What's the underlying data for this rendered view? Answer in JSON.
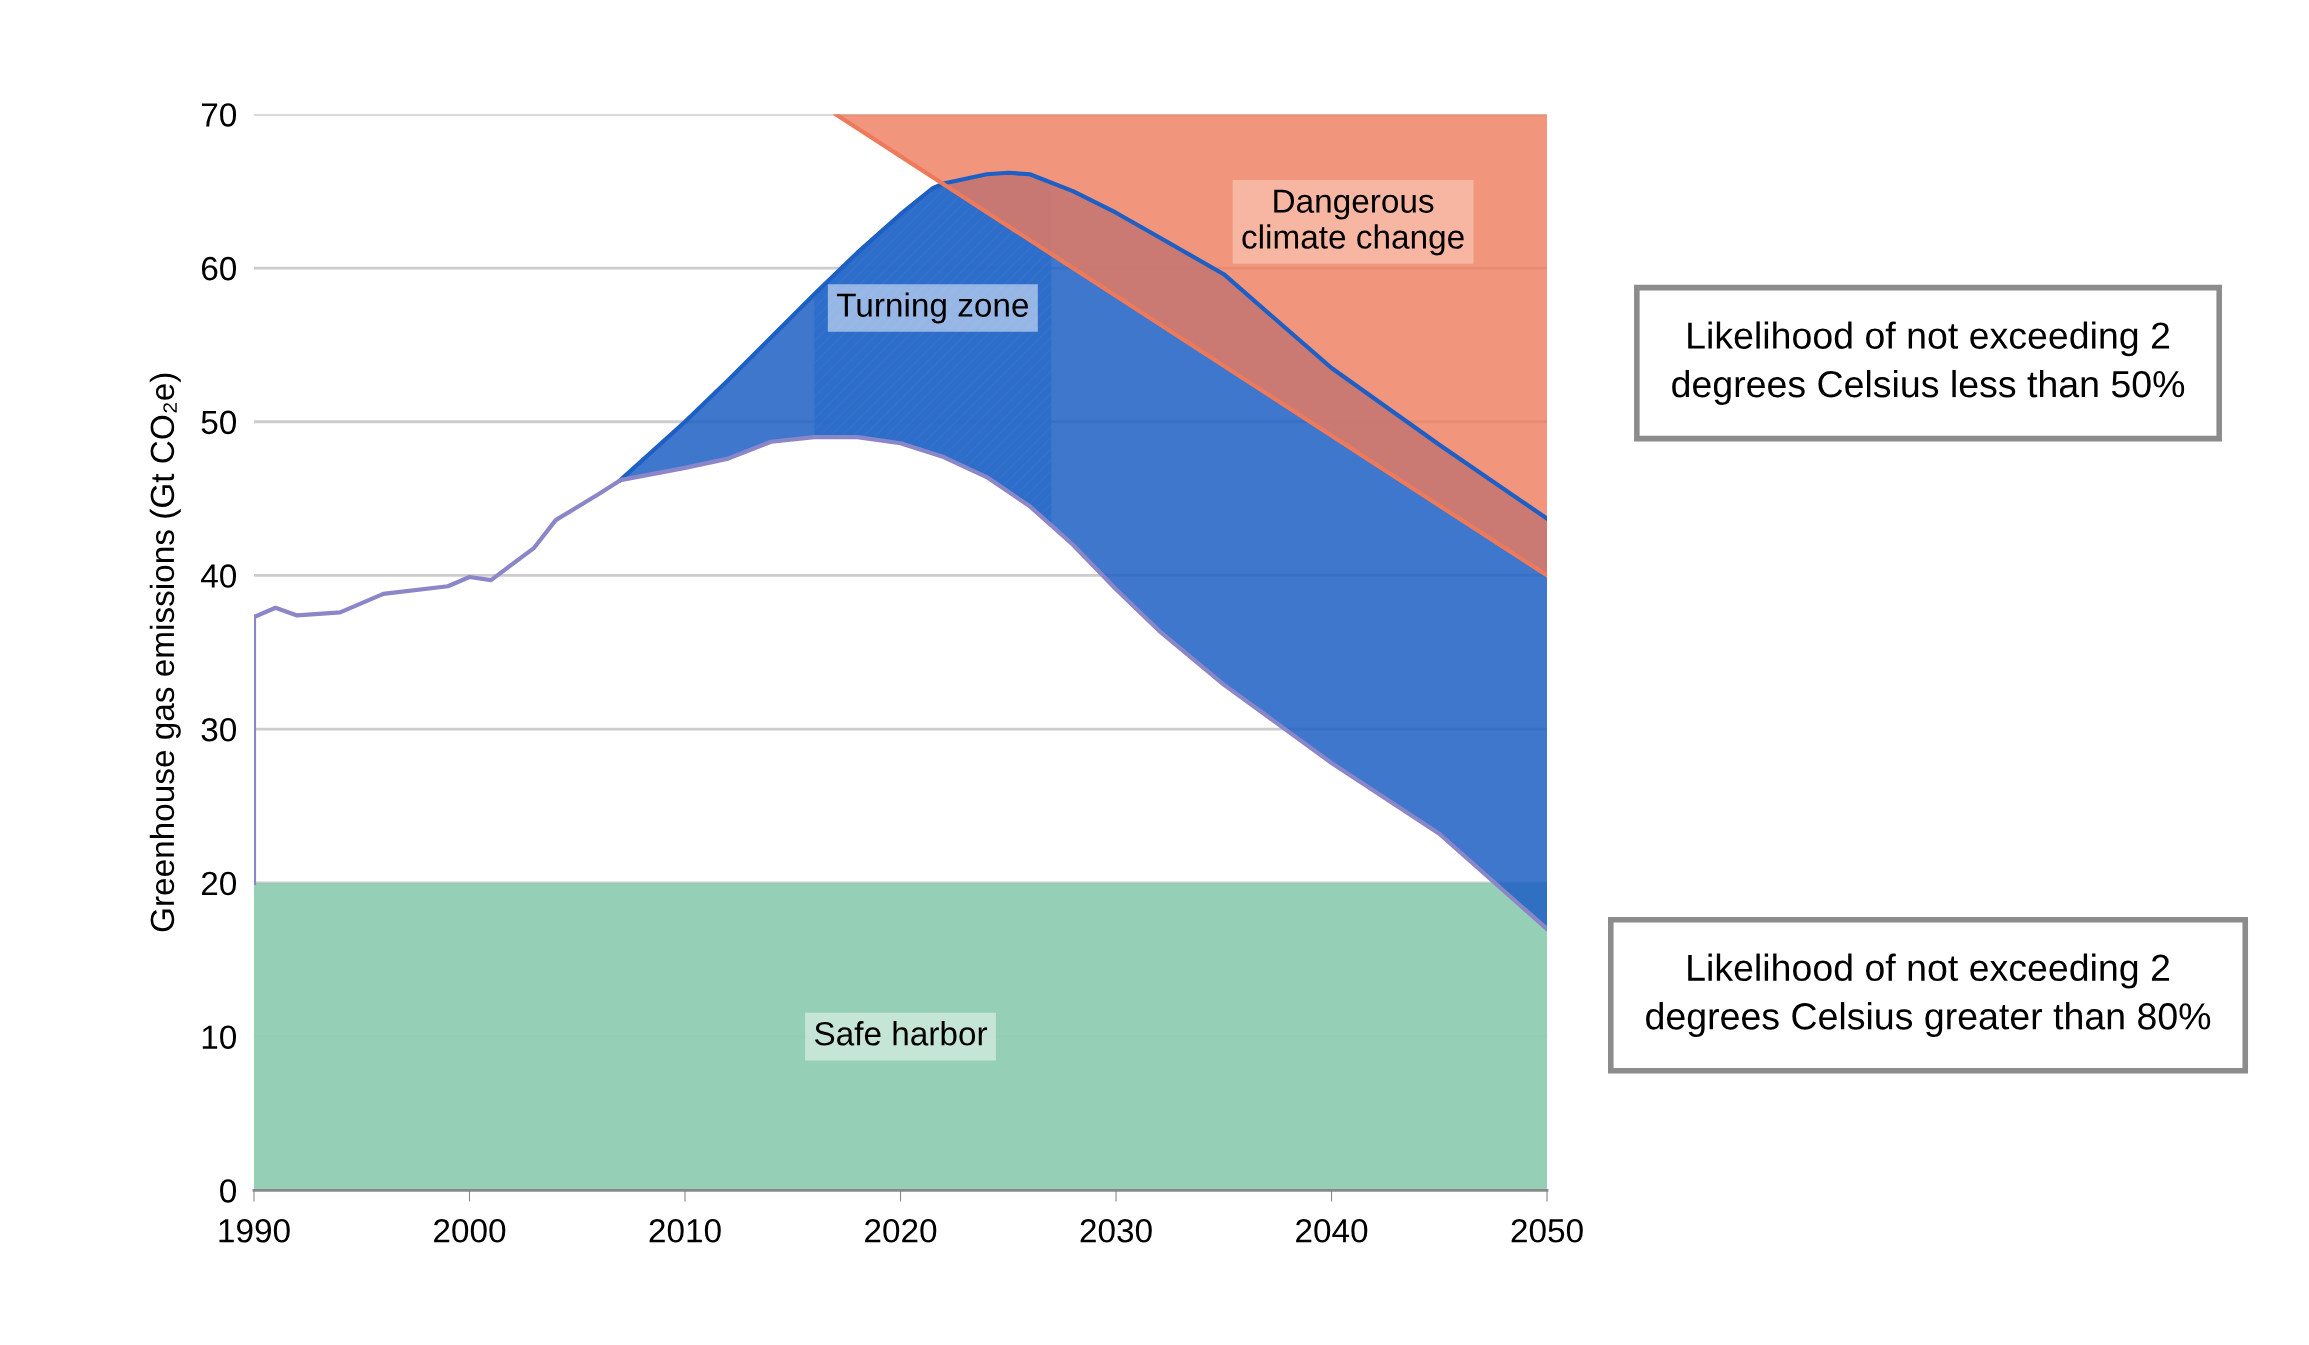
{
  "chart_data": {
    "type": "line",
    "ylabel": "Greenhouse gas emissions (Gt CO₂e)",
    "xlim": [
      1990,
      2050
    ],
    "xticks": [
      1990,
      2000,
      2010,
      2020,
      2030,
      2040,
      2050
    ],
    "ylim": [
      0,
      70
    ],
    "yticks": [
      0,
      10,
      20,
      30,
      40,
      50,
      60,
      70
    ],
    "grid": "y",
    "series": [
      {
        "color": "#1d5fc4",
        "x": [
          2007,
          2010,
          2012,
          2014,
          2016,
          2018,
          2020,
          2021.5,
          2022,
          2024,
          2025,
          2026,
          2028,
          2030,
          2032,
          2035,
          2040,
          2045,
          2050
        ],
        "values": [
          46.2,
          50.0,
          52.7,
          55.5,
          58.3,
          61.0,
          63.5,
          65.2,
          65.5,
          66.1,
          66.2,
          66.1,
          65.0,
          63.6,
          62.0,
          59.6,
          53.5,
          48.5,
          43.7
        ],
        "lower": [
          46.2,
          47.0,
          47.6,
          48.7,
          49.0,
          49.0,
          48.6,
          48.0,
          47.7,
          46.4,
          45.5,
          44.5,
          42.0,
          39.1,
          36.4,
          32.9,
          27.8,
          23.2,
          17.0
        ],
        "upper": [
          46.2,
          50.0,
          52.7,
          55.5,
          58.3,
          61.0,
          63.5,
          65.2,
          65.5,
          66.1,
          66.2,
          66.1,
          65.0,
          63.6,
          62.0,
          59.6,
          53.5,
          48.5,
          43.7
        ]
      },
      {
        "color": "#8a86c8",
        "x": [
          1990,
          1990,
          1991,
          1992,
          1994,
          1996,
          1999,
          2000,
          2001,
          2003,
          2004,
          2006,
          2007,
          2010,
          2012,
          2014,
          2016,
          2018,
          2020,
          2022,
          2024,
          2026,
          2028,
          2030,
          2032,
          2035,
          2040,
          2045,
          2050
        ],
        "values": [
          20,
          37.3,
          37.9,
          37.4,
          37.6,
          38.8,
          39.3,
          39.9,
          39.7,
          41.8,
          43.6,
          45.3,
          46.2,
          47.0,
          47.6,
          48.7,
          49.0,
          49.0,
          48.6,
          47.7,
          46.4,
          44.5,
          42.0,
          39.1,
          36.4,
          32.9,
          27.8,
          23.2,
          17.0
        ]
      },
      {
        "color": "#ee7a5c",
        "x": [
          2017,
          2050
        ],
        "values": [
          70,
          40
        ],
        "lower": [
          70,
          40
        ],
        "upper": [
          70,
          70
        ]
      }
    ],
    "bands": [
      {
        "axis": "y",
        "from": 0,
        "to": 20,
        "label": "Safe harbor",
        "color": "#8fcdb2"
      },
      {
        "axis": "x",
        "from": 2016,
        "to": 2027,
        "label": "Turning zone",
        "color": "#7ab8e6"
      }
    ],
    "annotations": [
      "Dangerous\nclimate change",
      "Likelihood of not exceeding 2\ndegrees Celsius less than 50%",
      "Likelihood of not exceeding 2\ndegrees Celsius greater than 80%"
    ]
  }
}
